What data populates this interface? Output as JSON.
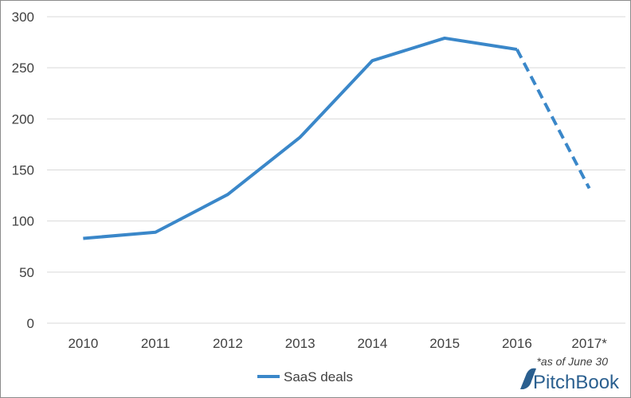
{
  "chart_data": {
    "type": "line",
    "categories": [
      "2010",
      "2011",
      "2012",
      "2013",
      "2014",
      "2015",
      "2016",
      "2017*"
    ],
    "series": [
      {
        "name": "SaaS deals",
        "values": [
          83,
          89,
          126,
          182,
          257,
          279,
          268,
          132
        ],
        "color": "#3a87c9",
        "dashed_from_index": 6
      }
    ],
    "ylim": [
      0,
      300
    ],
    "yticks": [
      0,
      50,
      100,
      150,
      200,
      250,
      300
    ],
    "grid": true,
    "legend": "bottom-center",
    "annotation": "*as of June 30"
  },
  "branding": {
    "logo_text": "PitchBook",
    "logo_color": "#2a5f8f"
  },
  "colors": {
    "gridline": "#d9d9d9",
    "axis_text": "#404040"
  }
}
